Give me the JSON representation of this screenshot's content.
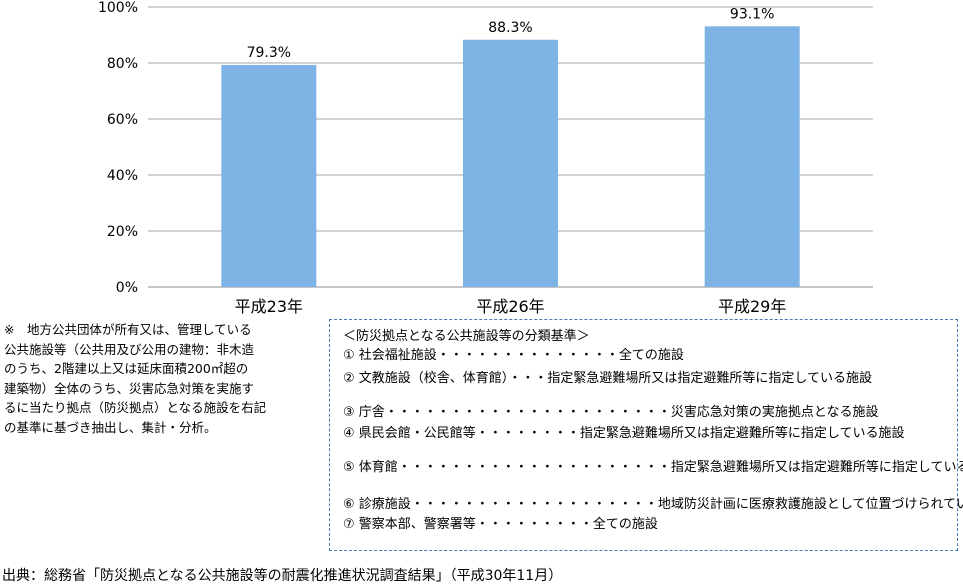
{
  "chart_data": {
    "type": "bar",
    "categories": [
      "平成23年",
      "平成26年",
      "平成29年"
    ],
    "values": [
      79.3,
      88.3,
      93.1
    ],
    "data_labels": [
      "79.3%",
      "88.3%",
      "93.1%"
    ],
    "ylim": [
      0,
      100
    ],
    "yticks": [
      0,
      20,
      40,
      60,
      80,
      100
    ],
    "ytick_labels": [
      "0%",
      "20%",
      "40%",
      "60%",
      "80%",
      "100%"
    ],
    "bar_color": "#7eb3e5",
    "grid": true,
    "title": "",
    "xlabel": "",
    "ylabel": ""
  },
  "note": {
    "lines": [
      "※　地方公共団体が所有又は、管理している",
      "公共施設等（公共用及び公用の建物：非木造",
      "のうち、2階建以上又は延床面積200㎡超の",
      "建築物）全体のうち、災害応急対策を実施す",
      "るに当たり拠点（防災拠点）となる施設を右記",
      "の基準に基づき抽出し、集計・分析。"
    ]
  },
  "criteria": {
    "title": "＜防災拠点となる公共施設等の分類基準＞",
    "items": [
      {
        "num": "①",
        "name": "社会福祉施設",
        "dots": "・・・・・・・・・・・・・・",
        "desc": "全ての施設"
      },
      {
        "num": "②",
        "name": "文教施設（校舎、体育館）",
        "dots": "・・・",
        "desc": "指定緊急避難場所又は指定避難所等に指定している施設"
      },
      {
        "num": "③",
        "name": "庁舎",
        "dots": "・・・・・・・・・・・・・・・・・・・・・・",
        "desc": "災害応急対策の実施拠点となる施設"
      },
      {
        "num": "④",
        "name": "県民会館・公民館等",
        "dots": "・・・・・・・・",
        "desc": "指定緊急避難場所又は指定避難所等に指定している施設"
      },
      {
        "num": "⑤",
        "name": "体育館",
        "dots": "・・・・・・・・・・・・・・・・・・・・・",
        "desc": "指定緊急避難場所又は指定避難所等に指定している施設"
      },
      {
        "num": "⑥",
        "name": "診療施設",
        "dots": "・・・・・・・・・・・・・・・・・・・",
        "desc": "地域防災計画に医療救護施設として位置づけられている施設"
      },
      {
        "num": "⑦",
        "name": "警察本部、警察署等",
        "dots": "・・・・・・・・・",
        "desc": "全ての施設"
      }
    ]
  },
  "source": "出典：総務省「防災拠点となる公共施設等の耐震化推進状況調査結果」（平成30年11月）"
}
